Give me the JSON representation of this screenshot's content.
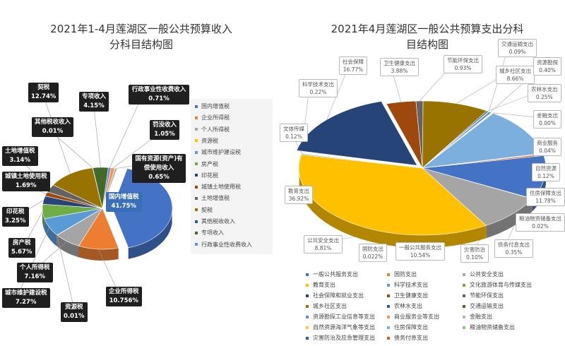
{
  "chart_data": [
    {
      "type": "pie",
      "title": "2021年1-4月莲湖区一般公共预算收入分科目结构图",
      "slices": [
        {
          "name": "国内增值税",
          "value": 41.75,
          "label": "41.75%",
          "color": "#4472c4"
        },
        {
          "name": "企业所得税",
          "value": 10.756,
          "label": "10.756%",
          "color": "#ed7d31"
        },
        {
          "name": "个人所得税",
          "value": 7.16,
          "label": "7.16%",
          "color": "#a5a5a5"
        },
        {
          "name": "资源税",
          "value": 0.01,
          "label": "0.01%",
          "color": "#ffc000"
        },
        {
          "name": "城市维护建设税",
          "value": 7.27,
          "label": "7.27%",
          "color": "#5b9bd5"
        },
        {
          "name": "房产税",
          "value": 5.67,
          "label": "5.67%",
          "color": "#70ad47"
        },
        {
          "name": "印花税",
          "value": 3.25,
          "label": "3.25%",
          "color": "#264478"
        },
        {
          "name": "城镇土地使用税",
          "value": 1.69,
          "label": "1.69%",
          "color": "#9e480e"
        },
        {
          "name": "土地增值税",
          "value": 3.14,
          "label": "3.14%",
          "color": "#636363"
        },
        {
          "name": "契税",
          "value": 12.74,
          "label": "12.74%",
          "color": "#997300"
        },
        {
          "name": "其他税收收入",
          "value": 0.01,
          "label": "0.01%",
          "color": "#255e91"
        },
        {
          "name": "专项收入",
          "value": 4.15,
          "label": "4.15%",
          "color": "#43682b"
        },
        {
          "name": "行政事业性收费收入",
          "value": 0.71,
          "label": "0.71%",
          "color": "#698ed0"
        },
        {
          "name": "罚没收入",
          "value": 1.05,
          "label": "1.05%",
          "color": "#f1975a"
        },
        {
          "name": "国有资源(资产)有偿使用收入",
          "value": 0.65,
          "label": "0.65%",
          "color": "#b7b7b7"
        }
      ],
      "legend": {
        "placement": "right",
        "items": [
          "国内增值税",
          "企业所得税",
          "个人所得税",
          "资源税",
          "城市维护建设税",
          "房产税",
          "印花税",
          "城镇土地使用税",
          "土地增值税",
          "契税",
          "其他税收收入",
          "专项收入",
          "行政事业性收费收入"
        ]
      }
    },
    {
      "type": "pie",
      "title": "2021年4月莲湖区一般公共预算支出分科目结构图",
      "slices": [
        {
          "name": "一般公共服务支出",
          "value": 10.54,
          "label": "10.54%",
          "color": "#4472c4"
        },
        {
          "name": "国防支出",
          "value": 0.022,
          "label": "0.022%",
          "color": "#ed7d31"
        },
        {
          "name": "公共安全支出",
          "value": 8.81,
          "label": "8.81%",
          "color": "#a5a5a5"
        },
        {
          "name": "教育支出",
          "value": 36.92,
          "label": "36.92%",
          "color": "#ffc000"
        },
        {
          "name": "科学技术支出",
          "value": 0.22,
          "label": "0.22%",
          "color": "#5b9bd5"
        },
        {
          "name": "文化旅游体育与传媒支出",
          "value": 0.12,
          "label": "0.12%",
          "color": "#70ad47"
        },
        {
          "name": "社会保障和就业支出",
          "value": 16.77,
          "label": "16.77%",
          "color": "#264478"
        },
        {
          "name": "卫生健康支出",
          "value": 3.88,
          "label": "3.88%",
          "color": "#9e480e"
        },
        {
          "name": "节能环保支出",
          "value": 0.93,
          "label": "0.93%",
          "color": "#636363"
        },
        {
          "name": "城乡社区支出",
          "value": 8.66,
          "label": "8.66%",
          "color": "#997300"
        },
        {
          "name": "农林水支出",
          "value": 0.25,
          "label": "0.25%",
          "color": "#255e91"
        },
        {
          "name": "交通运输支出",
          "value": 0.09,
          "label": "0.09%",
          "color": "#43682b"
        },
        {
          "name": "资源勘探工业信息等支出",
          "value": 0.4,
          "label": "0.40%",
          "color": "#698ed0"
        },
        {
          "name": "商业服务业等支出",
          "value": 0.04,
          "label": "0.04%",
          "color": "#f1975a"
        },
        {
          "name": "金融支出",
          "value": 0.0,
          "label": "0.00%",
          "color": "#b7b7b7"
        },
        {
          "name": "自然资源海洋气象等支出",
          "value": 0.12,
          "label": "0.12%",
          "color": "#ffcd33"
        },
        {
          "name": "住房保障支出",
          "value": 11.78,
          "label": "11.78%",
          "color": "#7cafdd"
        },
        {
          "name": "粮油物资储备支出",
          "value": 0.02,
          "label": "0.02%",
          "color": "#8cc168"
        },
        {
          "name": "灾害防治及应急管理支出",
          "value": 0.1,
          "label": "0.10%",
          "color": "#335aa1"
        },
        {
          "name": "债务付息支出",
          "value": 0.35,
          "label": "0.35%",
          "color": "#d26012"
        }
      ],
      "callout_names": {
        "一般公共服务支出": "一般公共服务支出",
        "国防支出": "国防支出",
        "公共安全支出": "公共安全支出",
        "教育支出": "教育支出",
        "科学技术支出": "科学技术支出",
        "文化旅游体育与传媒支出": "文体传媒",
        "社会保障和就业支出": "社会保障",
        "卫生健康支出": "卫生健康支出",
        "节能环保支出": "节能环保支出",
        "城乡社区支出": "城乡社区支出",
        "农林水支出": "农林水支出",
        "交通运输支出": "交通运输支出",
        "资源勘探工业信息等支出": "资源勘探",
        "商业服务业等支出": "商业服务",
        "金融支出": "金融支出",
        "自然资源海洋气象等支出": "自然资源",
        "住房保障支出": "住房保障支出",
        "粮油物资储备支出": "粮油物资储备支出",
        "灾害防治及应急管理支出": "灾害防治",
        "债务付息支出": "债务付息支出"
      },
      "legend": {
        "placement": "bottom",
        "items": [
          "一般公共服务支出",
          "国防支出",
          "公共安全支出",
          "教育支出",
          "科学技术支出",
          "文化旅游体育与传媒支出",
          "社会保障和就业支出",
          "卫生健康支出",
          "节能环保支出",
          "城乡社区支出",
          "农林水支出",
          "交通运输支出",
          "资源勘探工业信息等支出",
          "商业服务业等支出",
          "金融支出",
          "自然资源海洋气象等支出",
          "住房保障支出",
          "粮油物资储备支出",
          "灾害防治及应急管理支出",
          "债务付息支出"
        ]
      }
    }
  ],
  "titles": {
    "left": [
      "2021年1-4月莲湖区一般公共预算收入",
      "分科目结构图"
    ],
    "right": [
      "2021年4月莲湖区一般公共预算支出分科",
      "目结构图"
    ]
  }
}
